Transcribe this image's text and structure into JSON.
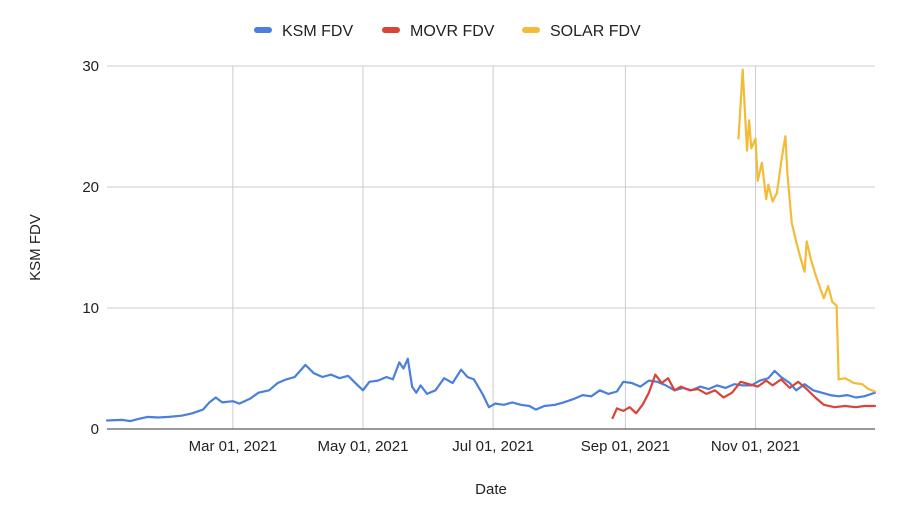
{
  "chart_data": {
    "type": "line",
    "title": "",
    "xlabel": "Date",
    "ylabel": "KSM FDV",
    "ylim": [
      0,
      30
    ],
    "yticks": [
      0,
      10,
      20,
      30
    ],
    "xlim": [
      "2021-01-01",
      "2021-12-27"
    ],
    "xticks": [
      {
        "date": "2021-03-01",
        "label": "Mar 01, 2021"
      },
      {
        "date": "2021-05-01",
        "label": "May 01, 2021"
      },
      {
        "date": "2021-07-01",
        "label": "Jul 01, 2021"
      },
      {
        "date": "2021-09-01",
        "label": "Sep 01, 2021"
      },
      {
        "date": "2021-11-01",
        "label": "Nov 01, 2021"
      }
    ],
    "grid": true,
    "legend_position": "top",
    "series": [
      {
        "name": "KSM FDV",
        "color": "#4a7fdc",
        "points": [
          [
            "2021-01-01",
            0.7
          ],
          [
            "2021-01-08",
            0.75
          ],
          [
            "2021-01-12",
            0.65
          ],
          [
            "2021-01-15",
            0.8
          ],
          [
            "2021-01-20",
            1.0
          ],
          [
            "2021-01-25",
            0.95
          ],
          [
            "2021-01-30",
            1.0
          ],
          [
            "2021-02-05",
            1.1
          ],
          [
            "2021-02-10",
            1.3
          ],
          [
            "2021-02-15",
            1.6
          ],
          [
            "2021-02-18",
            2.2
          ],
          [
            "2021-02-21",
            2.6
          ],
          [
            "2021-02-24",
            2.2
          ],
          [
            "2021-03-01",
            2.3
          ],
          [
            "2021-03-04",
            2.1
          ],
          [
            "2021-03-09",
            2.5
          ],
          [
            "2021-03-13",
            3.0
          ],
          [
            "2021-03-18",
            3.2
          ],
          [
            "2021-03-22",
            3.8
          ],
          [
            "2021-03-26",
            4.1
          ],
          [
            "2021-03-30",
            4.3
          ],
          [
            "2021-04-04",
            5.3
          ],
          [
            "2021-04-08",
            4.6
          ],
          [
            "2021-04-12",
            4.3
          ],
          [
            "2021-04-16",
            4.5
          ],
          [
            "2021-04-20",
            4.2
          ],
          [
            "2021-04-24",
            4.4
          ],
          [
            "2021-04-28",
            3.7
          ],
          [
            "2021-05-01",
            3.2
          ],
          [
            "2021-05-04",
            3.9
          ],
          [
            "2021-05-08",
            4.0
          ],
          [
            "2021-05-12",
            4.3
          ],
          [
            "2021-05-15",
            4.1
          ],
          [
            "2021-05-18",
            5.5
          ],
          [
            "2021-05-20",
            5.0
          ],
          [
            "2021-05-22",
            5.8
          ],
          [
            "2021-05-24",
            3.5
          ],
          [
            "2021-05-26",
            3.0
          ],
          [
            "2021-05-28",
            3.6
          ],
          [
            "2021-05-31",
            2.9
          ],
          [
            "2021-06-04",
            3.2
          ],
          [
            "2021-06-08",
            4.2
          ],
          [
            "2021-06-12",
            3.8
          ],
          [
            "2021-06-16",
            4.9
          ],
          [
            "2021-06-19",
            4.3
          ],
          [
            "2021-06-22",
            4.1
          ],
          [
            "2021-06-26",
            2.9
          ],
          [
            "2021-06-29",
            1.8
          ],
          [
            "2021-07-02",
            2.1
          ],
          [
            "2021-07-06",
            2.0
          ],
          [
            "2021-07-10",
            2.2
          ],
          [
            "2021-07-14",
            2.0
          ],
          [
            "2021-07-18",
            1.9
          ],
          [
            "2021-07-21",
            1.6
          ],
          [
            "2021-07-25",
            1.9
          ],
          [
            "2021-07-30",
            2.0
          ],
          [
            "2021-08-03",
            2.2
          ],
          [
            "2021-08-08",
            2.5
          ],
          [
            "2021-08-12",
            2.8
          ],
          [
            "2021-08-16",
            2.7
          ],
          [
            "2021-08-20",
            3.2
          ],
          [
            "2021-08-24",
            2.9
          ],
          [
            "2021-08-28",
            3.1
          ],
          [
            "2021-08-31",
            3.9
          ],
          [
            "2021-09-04",
            3.8
          ],
          [
            "2021-09-08",
            3.5
          ],
          [
            "2021-09-12",
            4.0
          ],
          [
            "2021-09-16",
            3.9
          ],
          [
            "2021-09-20",
            3.6
          ],
          [
            "2021-09-24",
            3.2
          ],
          [
            "2021-09-28",
            3.4
          ],
          [
            "2021-10-02",
            3.2
          ],
          [
            "2021-10-06",
            3.5
          ],
          [
            "2021-10-10",
            3.3
          ],
          [
            "2021-10-14",
            3.6
          ],
          [
            "2021-10-18",
            3.4
          ],
          [
            "2021-10-22",
            3.7
          ],
          [
            "2021-10-26",
            3.6
          ],
          [
            "2021-10-30",
            3.6
          ],
          [
            "2021-11-03",
            4.0
          ],
          [
            "2021-11-07",
            4.2
          ],
          [
            "2021-11-10",
            4.8
          ],
          [
            "2021-11-13",
            4.3
          ],
          [
            "2021-11-17",
            3.8
          ],
          [
            "2021-11-20",
            3.2
          ],
          [
            "2021-11-24",
            3.7
          ],
          [
            "2021-11-28",
            3.2
          ],
          [
            "2021-12-02",
            3.0
          ],
          [
            "2021-12-06",
            2.8
          ],
          [
            "2021-12-10",
            2.7
          ],
          [
            "2021-12-14",
            2.8
          ],
          [
            "2021-12-18",
            2.6
          ],
          [
            "2021-12-22",
            2.7
          ],
          [
            "2021-12-27",
            3.0
          ]
        ]
      },
      {
        "name": "MOVR FDV",
        "color": "#d94436",
        "points": [
          [
            "2021-08-26",
            0.9
          ],
          [
            "2021-08-28",
            1.7
          ],
          [
            "2021-08-31",
            1.5
          ],
          [
            "2021-09-03",
            1.8
          ],
          [
            "2021-09-06",
            1.3
          ],
          [
            "2021-09-09",
            2.0
          ],
          [
            "2021-09-12",
            3.0
          ],
          [
            "2021-09-15",
            4.5
          ],
          [
            "2021-09-18",
            3.8
          ],
          [
            "2021-09-21",
            4.2
          ],
          [
            "2021-09-24",
            3.2
          ],
          [
            "2021-09-27",
            3.5
          ],
          [
            "2021-10-01",
            3.2
          ],
          [
            "2021-10-05",
            3.3
          ],
          [
            "2021-10-09",
            2.9
          ],
          [
            "2021-10-13",
            3.2
          ],
          [
            "2021-10-17",
            2.6
          ],
          [
            "2021-10-21",
            3.0
          ],
          [
            "2021-10-25",
            3.9
          ],
          [
            "2021-10-29",
            3.7
          ],
          [
            "2021-11-02",
            3.5
          ],
          [
            "2021-11-06",
            4.0
          ],
          [
            "2021-11-09",
            3.6
          ],
          [
            "2021-11-13",
            4.1
          ],
          [
            "2021-11-17",
            3.4
          ],
          [
            "2021-11-21",
            3.9
          ],
          [
            "2021-11-25",
            3.3
          ],
          [
            "2021-11-29",
            2.6
          ],
          [
            "2021-12-03",
            2.0
          ],
          [
            "2021-12-08",
            1.8
          ],
          [
            "2021-12-13",
            1.9
          ],
          [
            "2021-12-18",
            1.8
          ],
          [
            "2021-12-22",
            1.9
          ],
          [
            "2021-12-27",
            1.9
          ]
        ]
      },
      {
        "name": "SOLAR FDV",
        "color": "#f2bc38",
        "points": [
          [
            "2021-10-24",
            24.0
          ],
          [
            "2021-10-26",
            29.7
          ],
          [
            "2021-10-28",
            23.0
          ],
          [
            "2021-10-29",
            25.5
          ],
          [
            "2021-10-30",
            23.2
          ],
          [
            "2021-11-01",
            24.0
          ],
          [
            "2021-11-02",
            20.5
          ],
          [
            "2021-11-04",
            22.0
          ],
          [
            "2021-11-06",
            19.0
          ],
          [
            "2021-11-07",
            20.2
          ],
          [
            "2021-11-09",
            18.8
          ],
          [
            "2021-11-11",
            19.5
          ],
          [
            "2021-11-13",
            22.0
          ],
          [
            "2021-11-14",
            23.2
          ],
          [
            "2021-11-15",
            24.2
          ],
          [
            "2021-11-16",
            21.0
          ],
          [
            "2021-11-18",
            17.0
          ],
          [
            "2021-11-20",
            15.5
          ],
          [
            "2021-11-22",
            14.2
          ],
          [
            "2021-11-24",
            13.0
          ],
          [
            "2021-11-25",
            15.5
          ],
          [
            "2021-11-27",
            14.0
          ],
          [
            "2021-11-29",
            12.8
          ],
          [
            "2021-12-01",
            11.8
          ],
          [
            "2021-12-03",
            10.8
          ],
          [
            "2021-12-05",
            11.8
          ],
          [
            "2021-12-07",
            10.5
          ],
          [
            "2021-12-09",
            10.2
          ],
          [
            "2021-12-10",
            4.1
          ],
          [
            "2021-12-13",
            4.2
          ],
          [
            "2021-12-17",
            3.8
          ],
          [
            "2021-12-21",
            3.7
          ],
          [
            "2021-12-24",
            3.3
          ],
          [
            "2021-12-27",
            3.1
          ]
        ]
      }
    ]
  }
}
